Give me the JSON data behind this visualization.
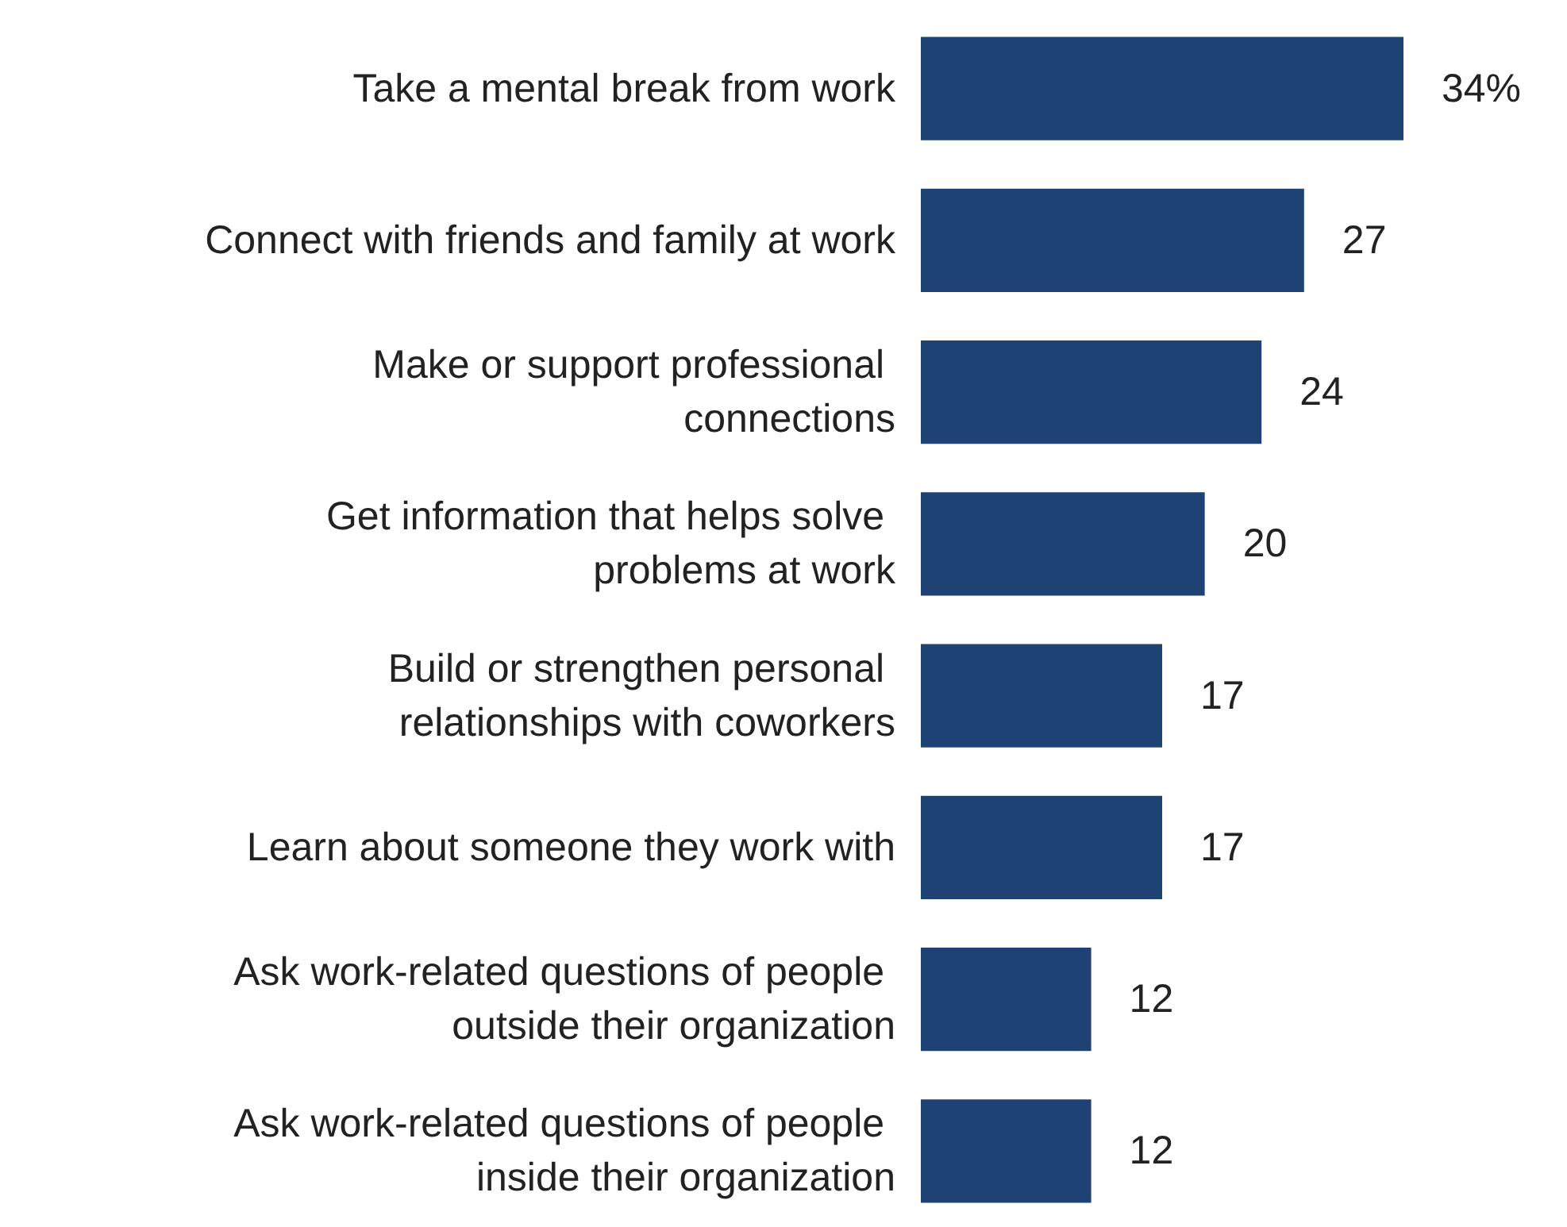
{
  "chart_data": {
    "type": "bar",
    "orientation": "horizontal",
    "categories": [
      "Take a mental break from work",
      "Connect with friends and family at work",
      "Make or support professional connections",
      "Get information that helps solve problems at work",
      "Build or strengthen personal relationships with coworkers",
      "Learn about someone they work with",
      "Ask work-related questions of people outside their organization",
      "Ask work-related questions of people inside their organization"
    ],
    "values": [
      34,
      27,
      24,
      20,
      17,
      17,
      12,
      12
    ],
    "value_labels": [
      "34%",
      "27",
      "24",
      "20",
      "17",
      "17",
      "12",
      "12"
    ],
    "color": "#1f4274"
  }
}
